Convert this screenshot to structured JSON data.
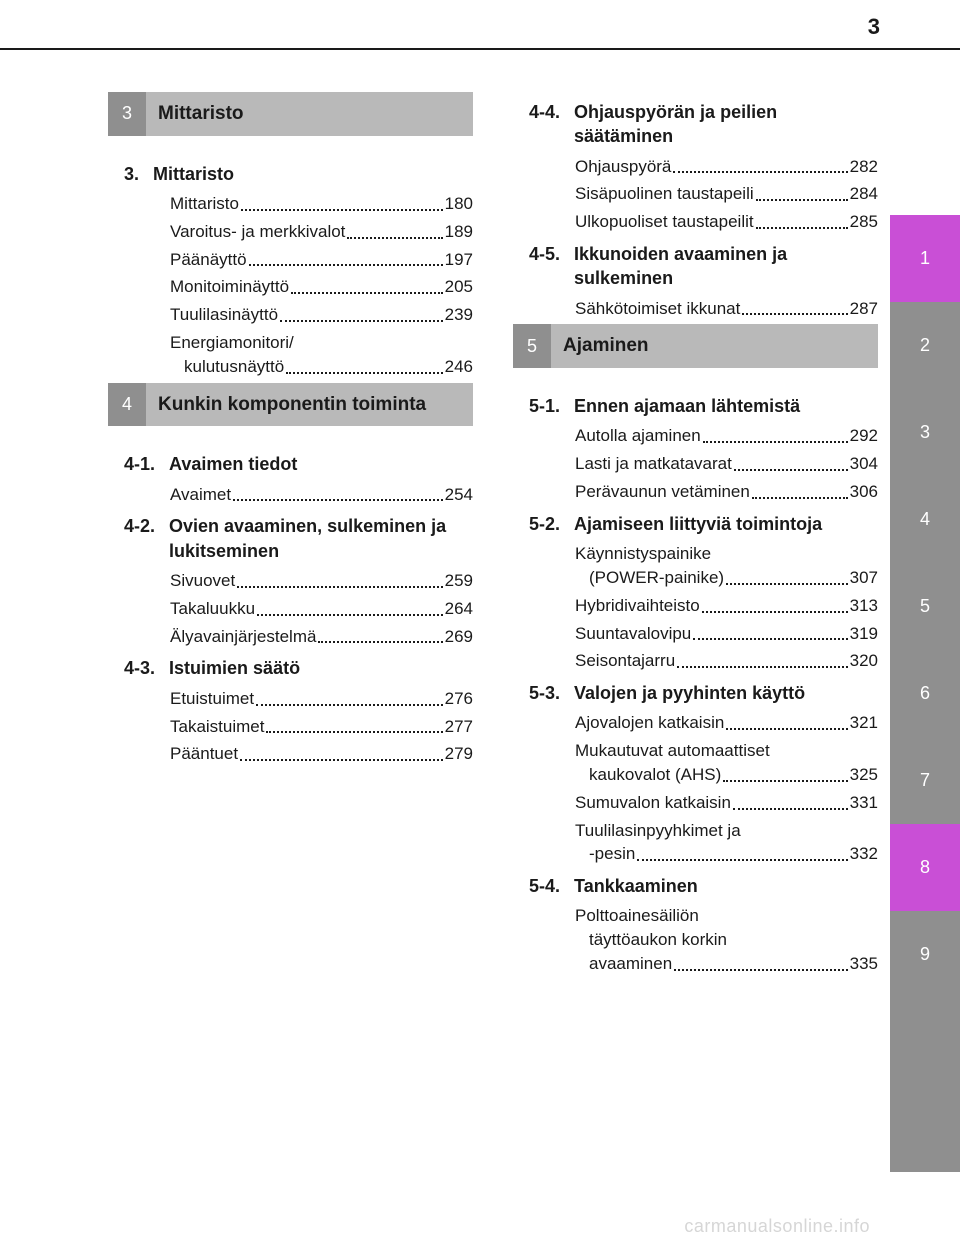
{
  "page_number": "3",
  "watermark": "carmanualsonline.info",
  "colors": {
    "tab_gray": "#8f8f8f",
    "tab_active": "#c94fd6",
    "chapter_num_bg": "#8f8f8f",
    "chapter_title_bg": "#b9b9b9",
    "text": "#1a1a1a",
    "watermark": "#d6d6d6"
  },
  "side_tabs": [
    {
      "label": "1",
      "active": true
    },
    {
      "label": "2",
      "active": false
    },
    {
      "label": "3",
      "active": false
    },
    {
      "label": "4",
      "active": false
    },
    {
      "label": "5",
      "active": false
    },
    {
      "label": "6",
      "active": false
    },
    {
      "label": "7",
      "active": false
    },
    {
      "label": "8",
      "active": true
    },
    {
      "label": "9",
      "active": false
    },
    {
      "label": "",
      "active": false
    },
    {
      "label": "",
      "active": false
    }
  ],
  "left_column": [
    {
      "type": "chapter",
      "num": "3",
      "title": "Mittaristo"
    },
    {
      "type": "section",
      "idx": "3.",
      "title": "Mittaristo"
    },
    {
      "type": "entry",
      "label": "Mittaristo",
      "page": "180"
    },
    {
      "type": "entry",
      "label": "Varoitus- ja merkkivalot",
      "page": "189"
    },
    {
      "type": "entry",
      "label": "Päänäyttö",
      "page": "197"
    },
    {
      "type": "entry",
      "label": "Monitoiminäyttö",
      "page": "205"
    },
    {
      "type": "entry",
      "label": "Tuulilasinäyttö",
      "page": "239"
    },
    {
      "type": "entry",
      "label_lines": [
        "Energiamonitori/",
        "kulutusnäyttö"
      ],
      "page": "246"
    },
    {
      "type": "chapter",
      "num": "4",
      "title": "Kunkin komponentin toiminta"
    },
    {
      "type": "section",
      "idx": "4-1.",
      "title": "Avaimen tiedot"
    },
    {
      "type": "entry",
      "label": "Avaimet",
      "page": "254"
    },
    {
      "type": "section",
      "idx": "4-2.",
      "title": "Ovien avaaminen, sulkeminen ja lukitseminen"
    },
    {
      "type": "entry",
      "label": "Sivuovet",
      "page": "259"
    },
    {
      "type": "entry",
      "label": "Takaluukku",
      "page": "264"
    },
    {
      "type": "entry",
      "label": "Älyavainjärjestelmä",
      "page": "269"
    },
    {
      "type": "section",
      "idx": "4-3.",
      "title": "Istuimien säätö"
    },
    {
      "type": "entry",
      "label": "Etuistuimet",
      "page": "276"
    },
    {
      "type": "entry",
      "label": "Takaistuimet",
      "page": "277"
    },
    {
      "type": "entry",
      "label": "Pääntuet",
      "page": "279"
    }
  ],
  "right_column": [
    {
      "type": "section",
      "idx": "4-4.",
      "title": "Ohjauspyörän ja peilien säätäminen"
    },
    {
      "type": "entry",
      "label": "Ohjauspyörä",
      "page": "282"
    },
    {
      "type": "entry",
      "label": "Sisäpuolinen taustapeili",
      "page": "284"
    },
    {
      "type": "entry",
      "label": "Ulkopuoliset taustapeilit",
      "page": "285"
    },
    {
      "type": "section",
      "idx": "4-5.",
      "title": "Ikkunoiden avaaminen ja sulkeminen"
    },
    {
      "type": "entry",
      "label": "Sähkötoimiset ikkunat",
      "page": "287"
    },
    {
      "type": "chapter",
      "num": "5",
      "title": "Ajaminen"
    },
    {
      "type": "section",
      "idx": "5-1.",
      "title": "Ennen ajamaan lähtemistä"
    },
    {
      "type": "entry",
      "label": "Autolla ajaminen",
      "page": "292"
    },
    {
      "type": "entry",
      "label": "Lasti ja matkatavarat",
      "page": "304"
    },
    {
      "type": "entry",
      "label": "Perävaunun vetäminen",
      "page": "306"
    },
    {
      "type": "section",
      "idx": "5-2.",
      "title": "Ajamiseen liittyviä toimintoja"
    },
    {
      "type": "entry",
      "label_lines": [
        "Käynnistyspainike",
        "(POWER-painike)"
      ],
      "page": "307"
    },
    {
      "type": "entry",
      "label": "Hybridivaihteisto",
      "page": "313"
    },
    {
      "type": "entry",
      "label": "Suuntavalovipu",
      "page": "319"
    },
    {
      "type": "entry",
      "label": "Seisontajarru",
      "page": "320"
    },
    {
      "type": "section",
      "idx": "5-3.",
      "title": "Valojen ja pyyhinten käyttö"
    },
    {
      "type": "entry",
      "label": "Ajovalojen katkaisin",
      "page": "321"
    },
    {
      "type": "entry",
      "label_lines": [
        "Mukautuvat automaattiset",
        "kaukovalot (AHS)"
      ],
      "page": "325"
    },
    {
      "type": "entry",
      "label": "Sumuvalon katkaisin",
      "page": "331"
    },
    {
      "type": "entry",
      "label_lines": [
        "Tuulilasinpyyhkimet ja",
        "-pesin"
      ],
      "page": "332"
    },
    {
      "type": "section",
      "idx": "5-4.",
      "title": "Tankkaaminen"
    },
    {
      "type": "entry",
      "label_lines": [
        "Polttoainesäiliön",
        "täyttöaukon korkin",
        "avaaminen"
      ],
      "page": "335"
    }
  ]
}
